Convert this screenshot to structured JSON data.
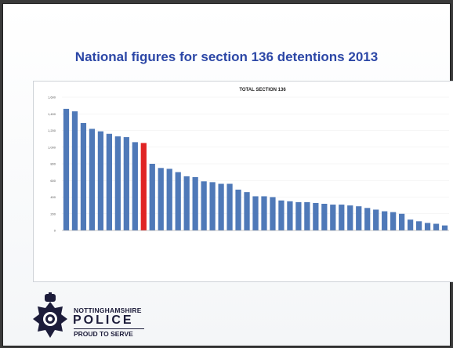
{
  "slide": {
    "title": "National figures for section 136 detentions 2013"
  },
  "colors": {
    "bar": "#4f79b8",
    "highlight_bar": "#e02424",
    "title": "#2c47a6"
  },
  "logo": {
    "line1": "NOTTINGHAMSHIRE",
    "line2": "POLICE",
    "line3": "PROUD TO SERVE",
    "icon": "police-crest-icon"
  },
  "chart_data": {
    "type": "bar",
    "title": "TOTAL SECTION 136",
    "categories": [
      "",
      "",
      "",
      "",
      "",
      "",
      "",
      "",
      "",
      "",
      "",
      "",
      "",
      "",
      "",
      "",
      "",
      "",
      "",
      "",
      "",
      "",
      "",
      "",
      "",
      "",
      "",
      "",
      "",
      "",
      "",
      "",
      "",
      "",
      "",
      "",
      "",
      "",
      "",
      "",
      "",
      "",
      "",
      "",
      ""
    ],
    "values": [
      1460,
      1430,
      1290,
      1220,
      1190,
      1160,
      1130,
      1120,
      1060,
      1050,
      800,
      750,
      740,
      700,
      650,
      640,
      590,
      580,
      560,
      560,
      490,
      460,
      410,
      410,
      400,
      360,
      350,
      340,
      340,
      330,
      320,
      310,
      310,
      300,
      290,
      270,
      250,
      230,
      220,
      200,
      130,
      110,
      90,
      80,
      60
    ],
    "highlight_index": 9,
    "ylim": [
      0,
      1600
    ],
    "yticks": [
      0,
      200,
      400,
      600,
      800,
      1000,
      1200,
      1400,
      1600
    ],
    "xlabel": "",
    "ylabel": "",
    "grid": true,
    "legend": "none"
  }
}
